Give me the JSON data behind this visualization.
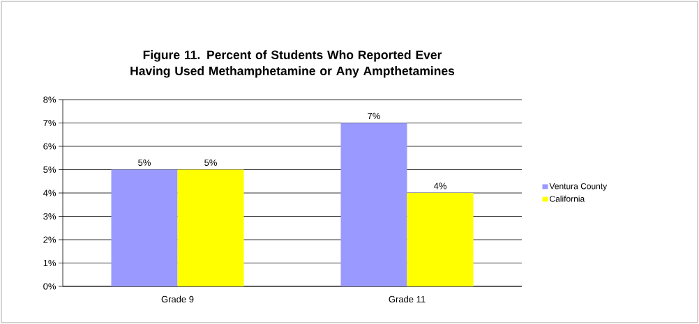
{
  "chart_data": {
    "type": "bar",
    "title": "Figure 11. Percent of Students Who Reported Ever Having Used Methamphetamine or Any Ampthetamines",
    "categories": [
      "Grade 9",
      "Grade 11"
    ],
    "series": [
      {
        "name": "Ventura County",
        "color": "#9999ff",
        "values": [
          5,
          7
        ],
        "value_labels": [
          "5%",
          "7%"
        ]
      },
      {
        "name": "California",
        "color": "#ffff00",
        "values": [
          5,
          4
        ],
        "value_labels": [
          "5%",
          "4%"
        ]
      }
    ],
    "ylim": [
      0,
      8
    ],
    "yticks": [
      {
        "value": 0,
        "label": "0%"
      },
      {
        "value": 1,
        "label": "1%"
      },
      {
        "value": 2,
        "label": "2%"
      },
      {
        "value": 3,
        "label": "3%"
      },
      {
        "value": 4,
        "label": "4%"
      },
      {
        "value": 5,
        "label": "5%"
      },
      {
        "value": 6,
        "label": "6%"
      },
      {
        "value": 7,
        "label": "7%"
      },
      {
        "value": 8,
        "label": "8%"
      }
    ],
    "grid": "y",
    "legend": "right"
  }
}
